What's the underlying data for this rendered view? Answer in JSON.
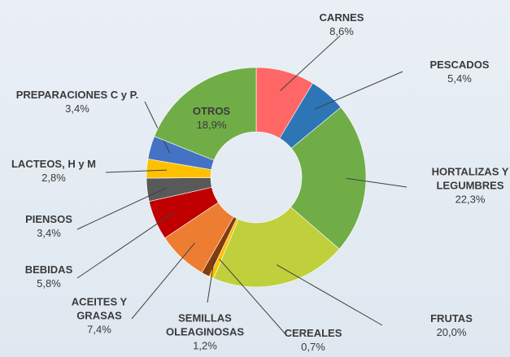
{
  "chart_data": {
    "type": "donut",
    "categories": [
      "CARNES",
      "PESCADOS",
      "HORTALIZAS Y LEGUMBRES",
      "FRUTAS",
      "CEREALES",
      "SEMILLAS OLEAGINOSAS",
      "ACEITES Y GRASAS",
      "BEBIDAS",
      "PIENSOS",
      "LACTEOS, H y M",
      "PREPARACIONES C y P.",
      "OTROS"
    ],
    "values": [
      8.6,
      5.4,
      22.3,
      20.0,
      0.7,
      1.2,
      7.4,
      5.8,
      3.4,
      2.8,
      3.4,
      18.9
    ],
    "value_labels": [
      "8,6%",
      "5,4%",
      "22,3%",
      "20,0%",
      "0,7%",
      "1,2%",
      "7,4%",
      "5,8%",
      "3,4%",
      "2,8%",
      "3,4%",
      "18,9%"
    ],
    "colors": [
      "#ff6666",
      "#2e75b6",
      "#70ad47",
      "#c0cf3c",
      "#ffc000",
      "#843c0c",
      "#ed7d31",
      "#c00000",
      "#595959",
      "#ffc000",
      "#4472c4",
      "#70ad47"
    ]
  }
}
